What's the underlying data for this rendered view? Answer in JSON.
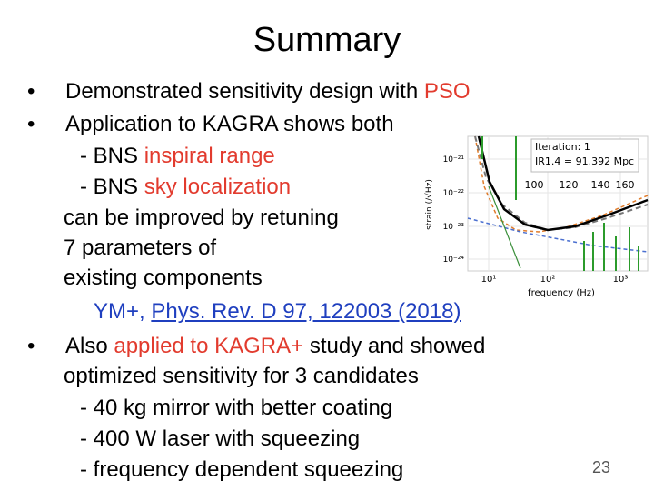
{
  "title": "Summary",
  "lines": [
    [
      "Demonstrated sensitivity design with ",
      "PSO"
    ],
    [
      "Application to KAGRA shows both"
    ],
    [
      "- BNS ",
      "inspiral range"
    ],
    [
      "- BNS ",
      "sky localization"
    ],
    [
      "can be improved by retuning"
    ],
    [
      "7 parameters of"
    ],
    [
      "existing components"
    ],
    [
      "YM+, ",
      "Phys. Rev. D 97, 122003 (2018)"
    ],
    [
      "Also ",
      "applied to KAGRA+",
      " study and showed"
    ],
    [
      "optimized sensitivity for 3 candidates"
    ],
    [
      "- 40 kg mirror with better coating"
    ],
    [
      "- 400 W laser with squeezing"
    ],
    [
      "- frequency dependent squeezing"
    ]
  ],
  "figure": {
    "legend": [
      "Iteration: 1",
      "IR1.4 = 91.392 Mpc"
    ],
    "inset_ticks": [
      "100",
      "120",
      "140",
      "160"
    ],
    "y_label": "strain (/√Hz)",
    "y_ticks": [
      "10⁻²¹",
      "10⁻²²",
      "10⁻²³",
      "10⁻²⁴"
    ],
    "x_ticks": [
      "10¹",
      "10²",
      "10³"
    ],
    "x_label": "frequency (Hz)"
  },
  "page_number": "23"
}
